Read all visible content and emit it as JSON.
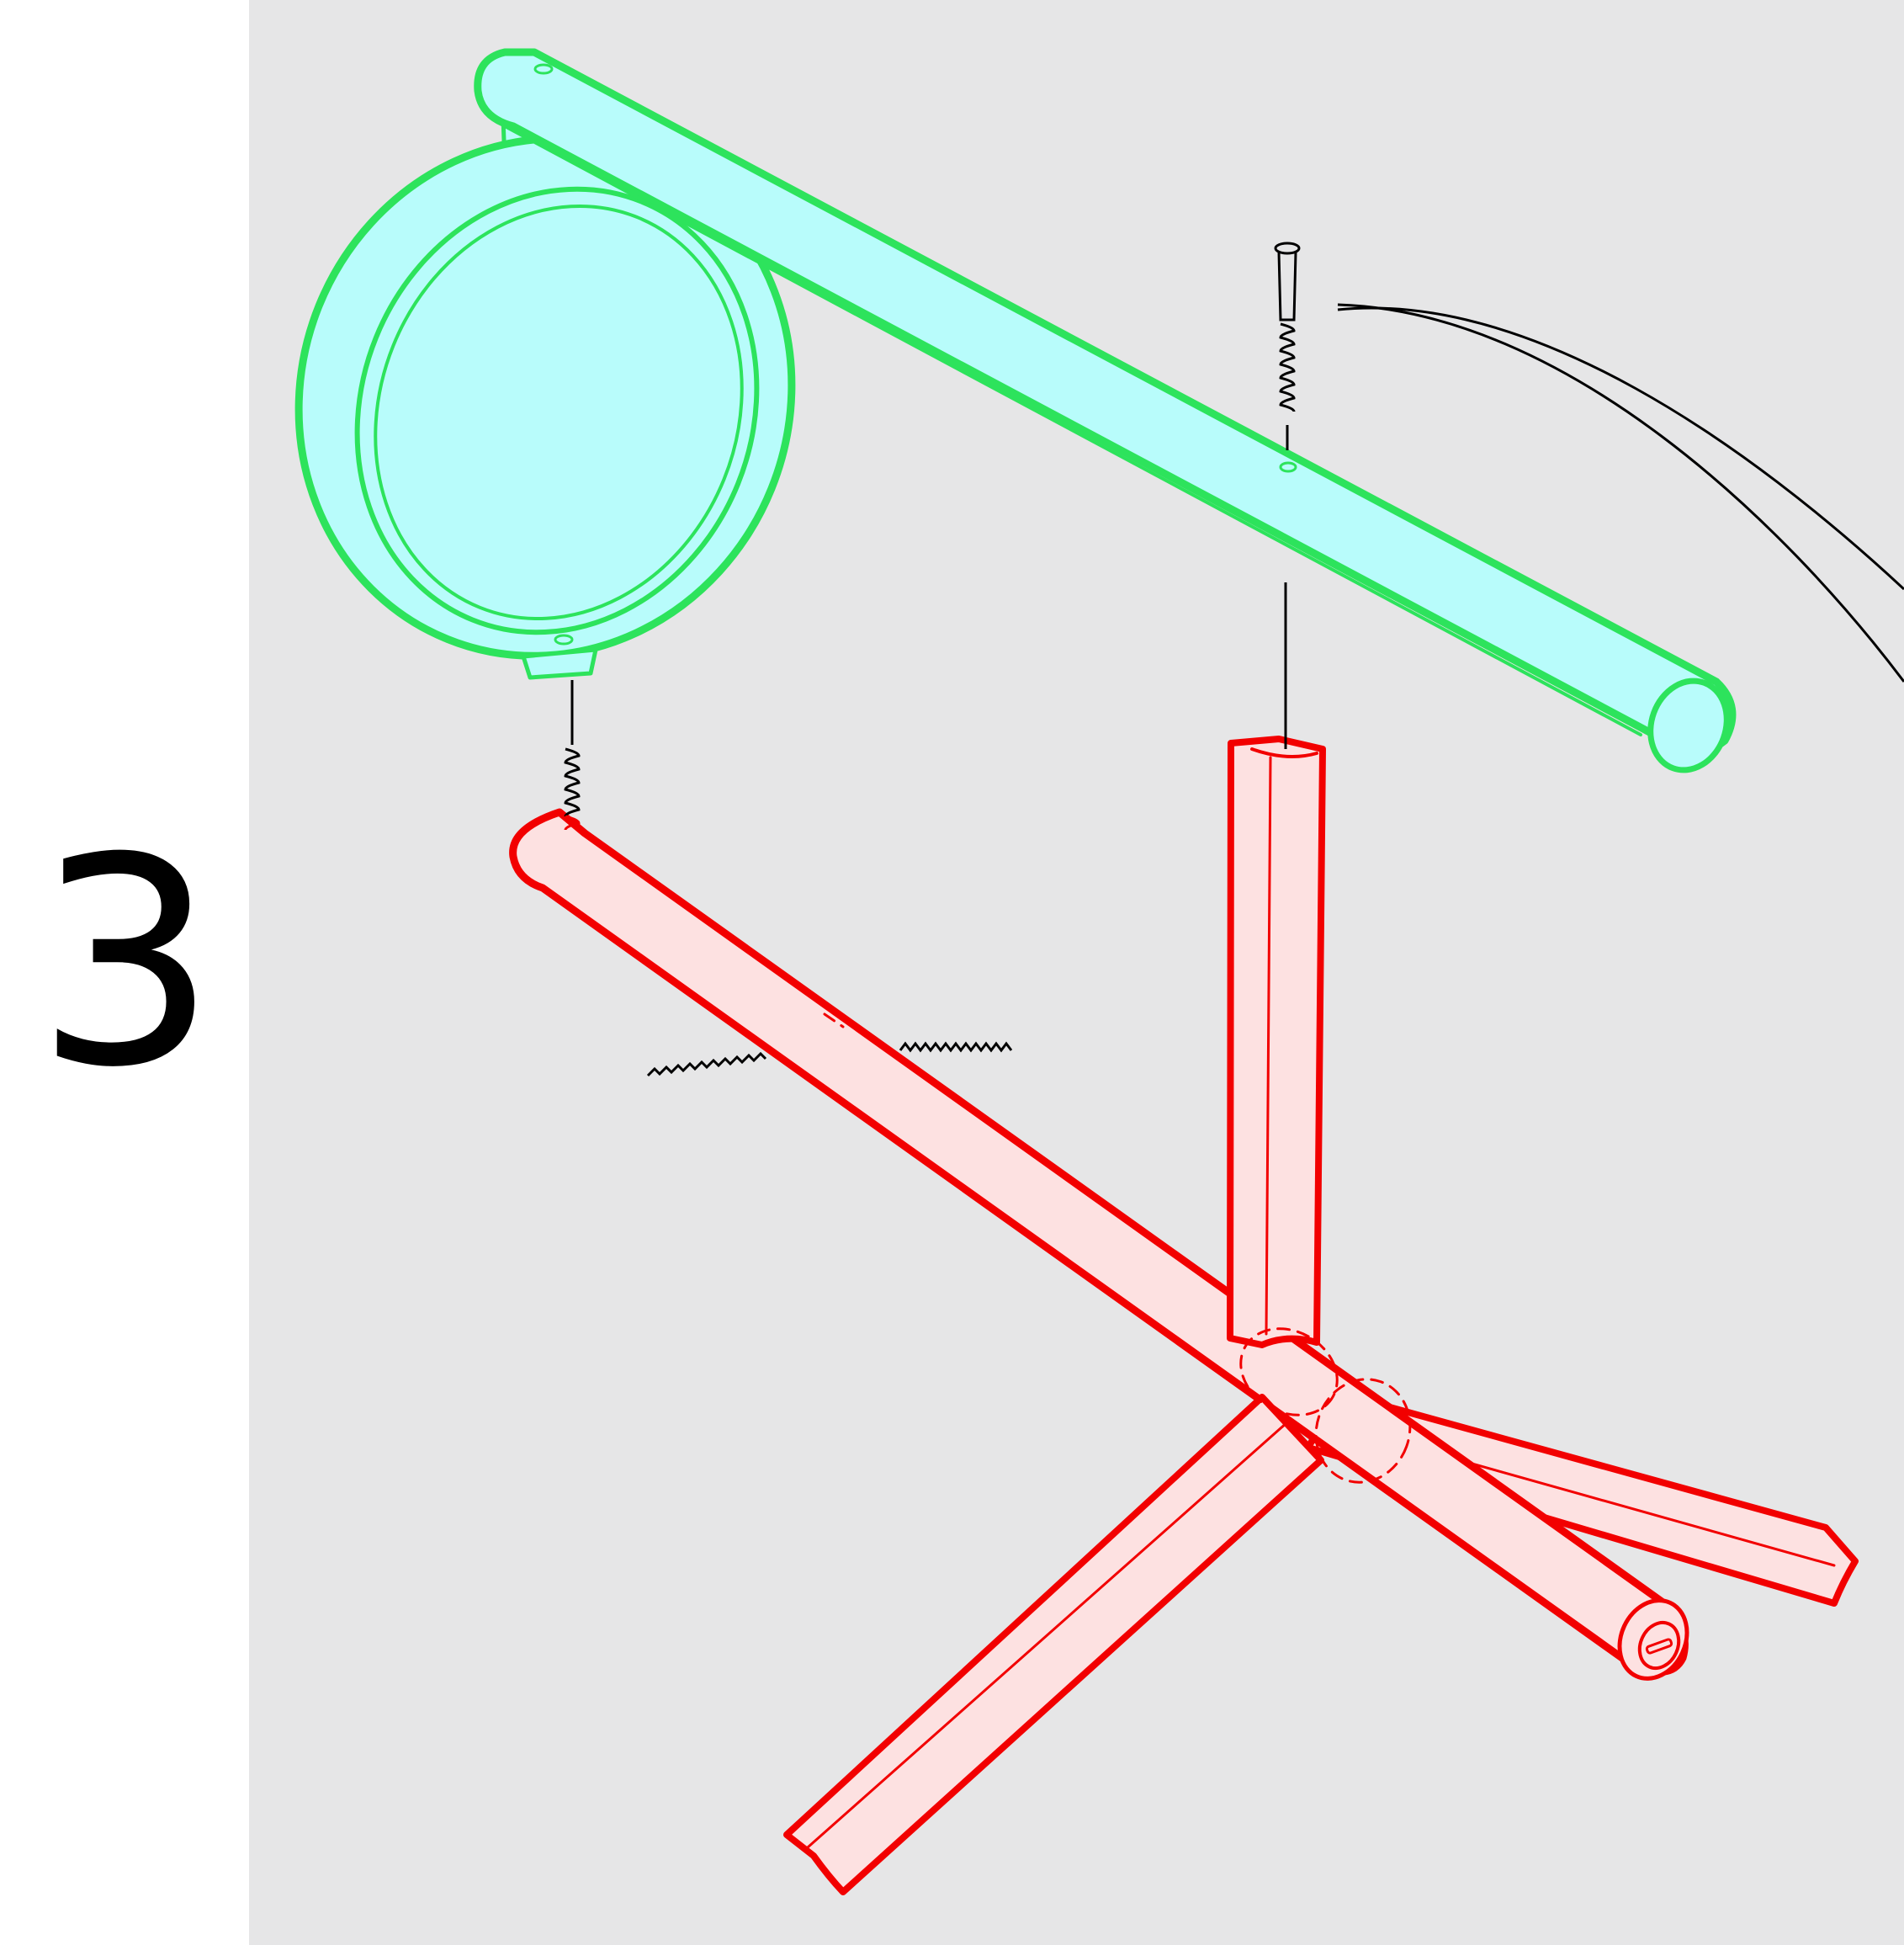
{
  "instruction": {
    "step_number": "3"
  },
  "colors": {
    "background": "#e6e6e7",
    "margin": "#ffffff",
    "head_outline": "#2de35c",
    "head_fill": "#b8fcfb",
    "base_outline": "#f20000",
    "base_fill": "#fde1e1",
    "hardware": "#000000"
  },
  "parts": {
    "lamp_head": {
      "icon": "lamp-head-shade-with-arm",
      "highlight": "green"
    },
    "lamp_base": {
      "icon": "lamp-base-stand-with-legs",
      "highlight": "red"
    },
    "long_screw": {
      "icon": "long-screw",
      "quantity_shown": 1
    },
    "threaded_studs": {
      "icon": "threaded-stud",
      "quantity_shown": 3
    },
    "power_cord": {
      "icon": "power-cord"
    }
  }
}
